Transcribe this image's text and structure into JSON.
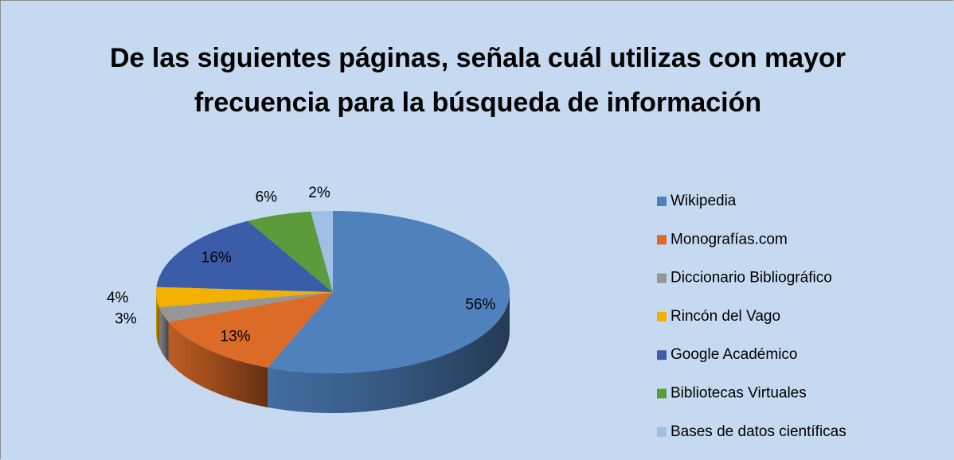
{
  "chart_data": {
    "type": "pie3d",
    "title": "De las siguientes páginas, señala cuál utilizas con mayor frecuencia para la búsqueda de información",
    "categories": [
      "Wikipedia",
      "Monografías.com",
      "Diccionario  Bibliográfico",
      "Rincón del Vago",
      "Google Académico",
      "Bibliotecas  Virtuales",
      "Bases de datos científicas"
    ],
    "values": [
      56,
      13,
      3,
      4,
      16,
      6,
      2
    ],
    "value_labels": [
      "56%",
      "13%",
      "3%",
      "4%",
      "16%",
      "6%",
      "2%"
    ],
    "colors": [
      "#4f81bd",
      "#dd6b28",
      "#969696",
      "#f2b000",
      "#3b5da9",
      "#5b9b3c",
      "#9fbfe4"
    ],
    "legend": "right"
  }
}
